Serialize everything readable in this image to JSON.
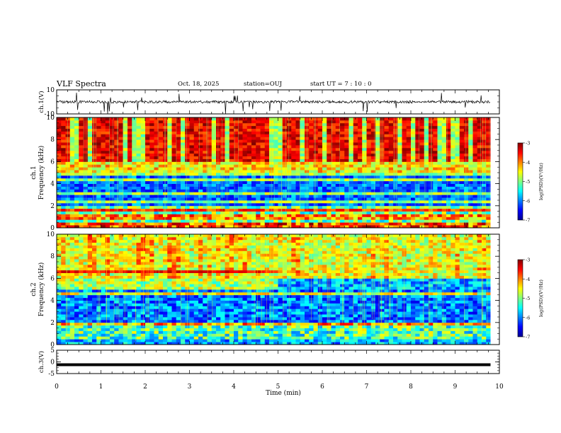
{
  "header": {
    "title": "VLF Spectra",
    "date": "Oct. 18, 2025",
    "station": "station=OUJ",
    "start": "start UT =  7 : 10 : 0"
  },
  "colors": {
    "jet_stops": [
      "#00008f",
      "#0000ff",
      "#0080ff",
      "#00ffff",
      "#80ff80",
      "#ffff00",
      "#ff8000",
      "#ff0000",
      "#800000"
    ]
  },
  "chart_data": [
    {
      "type": "line",
      "panel": "ch1-waveform",
      "ylabel": "ch.1(V)",
      "ylim": [
        -10,
        10
      ],
      "yticks": [
        "10",
        "-10"
      ],
      "xlim": [
        0,
        10
      ],
      "description_of_series": "broadband waveform, mostly between -2 and 2 V with spikes toward -10 V"
    },
    {
      "type": "heatmap",
      "panel": "ch1-spectrogram",
      "ylabel": "ch.1\nFrequency (kHz)",
      "ylabel_lines": [
        "ch.1",
        "Frequency (kHz)"
      ],
      "ylim": [
        0,
        10
      ],
      "yticks": [
        "0",
        "2",
        "4",
        "6",
        "8",
        "10"
      ],
      "xlim": [
        0,
        9.8
      ],
      "colorbar": {
        "label": "log(PSD)(V²/Hz)",
        "range": [
          -7,
          -3
        ],
        "ticks": [
          "-3",
          "-4",
          "-5",
          "-6",
          "-7"
        ]
      }
    },
    {
      "type": "heatmap",
      "panel": "ch2-spectrogram",
      "ylabel": "ch.2\nFrequency (kHz)",
      "ylabel_lines": [
        "ch.2",
        "Frequency (kHz)"
      ],
      "ylim": [
        0,
        10
      ],
      "yticks": [
        "0",
        "2",
        "4",
        "6",
        "8",
        "10"
      ],
      "xlim": [
        0,
        9.8
      ],
      "colorbar": {
        "label": "log(PSD)(V²/Hz)",
        "range": [
          -7,
          -3
        ],
        "ticks": [
          "-3",
          "-4",
          "-5",
          "-6",
          "-7"
        ]
      }
    },
    {
      "type": "line",
      "panel": "ch3-waveform",
      "ylabel": "ch.3(V)",
      "ylim": [
        -5,
        5
      ],
      "yticks": [
        "5",
        "0",
        "-5"
      ],
      "xlim": [
        0,
        10
      ],
      "series": [
        {
          "x": [
            0,
            9.8
          ],
          "y": [
            -1.2,
            -1.2
          ]
        }
      ]
    }
  ],
  "xaxis": {
    "label": "Time (min)",
    "range": [
      0,
      10
    ],
    "ticks": [
      "0",
      "1",
      "2",
      "3",
      "4",
      "5",
      "6",
      "7",
      "8",
      "9",
      "10"
    ]
  }
}
